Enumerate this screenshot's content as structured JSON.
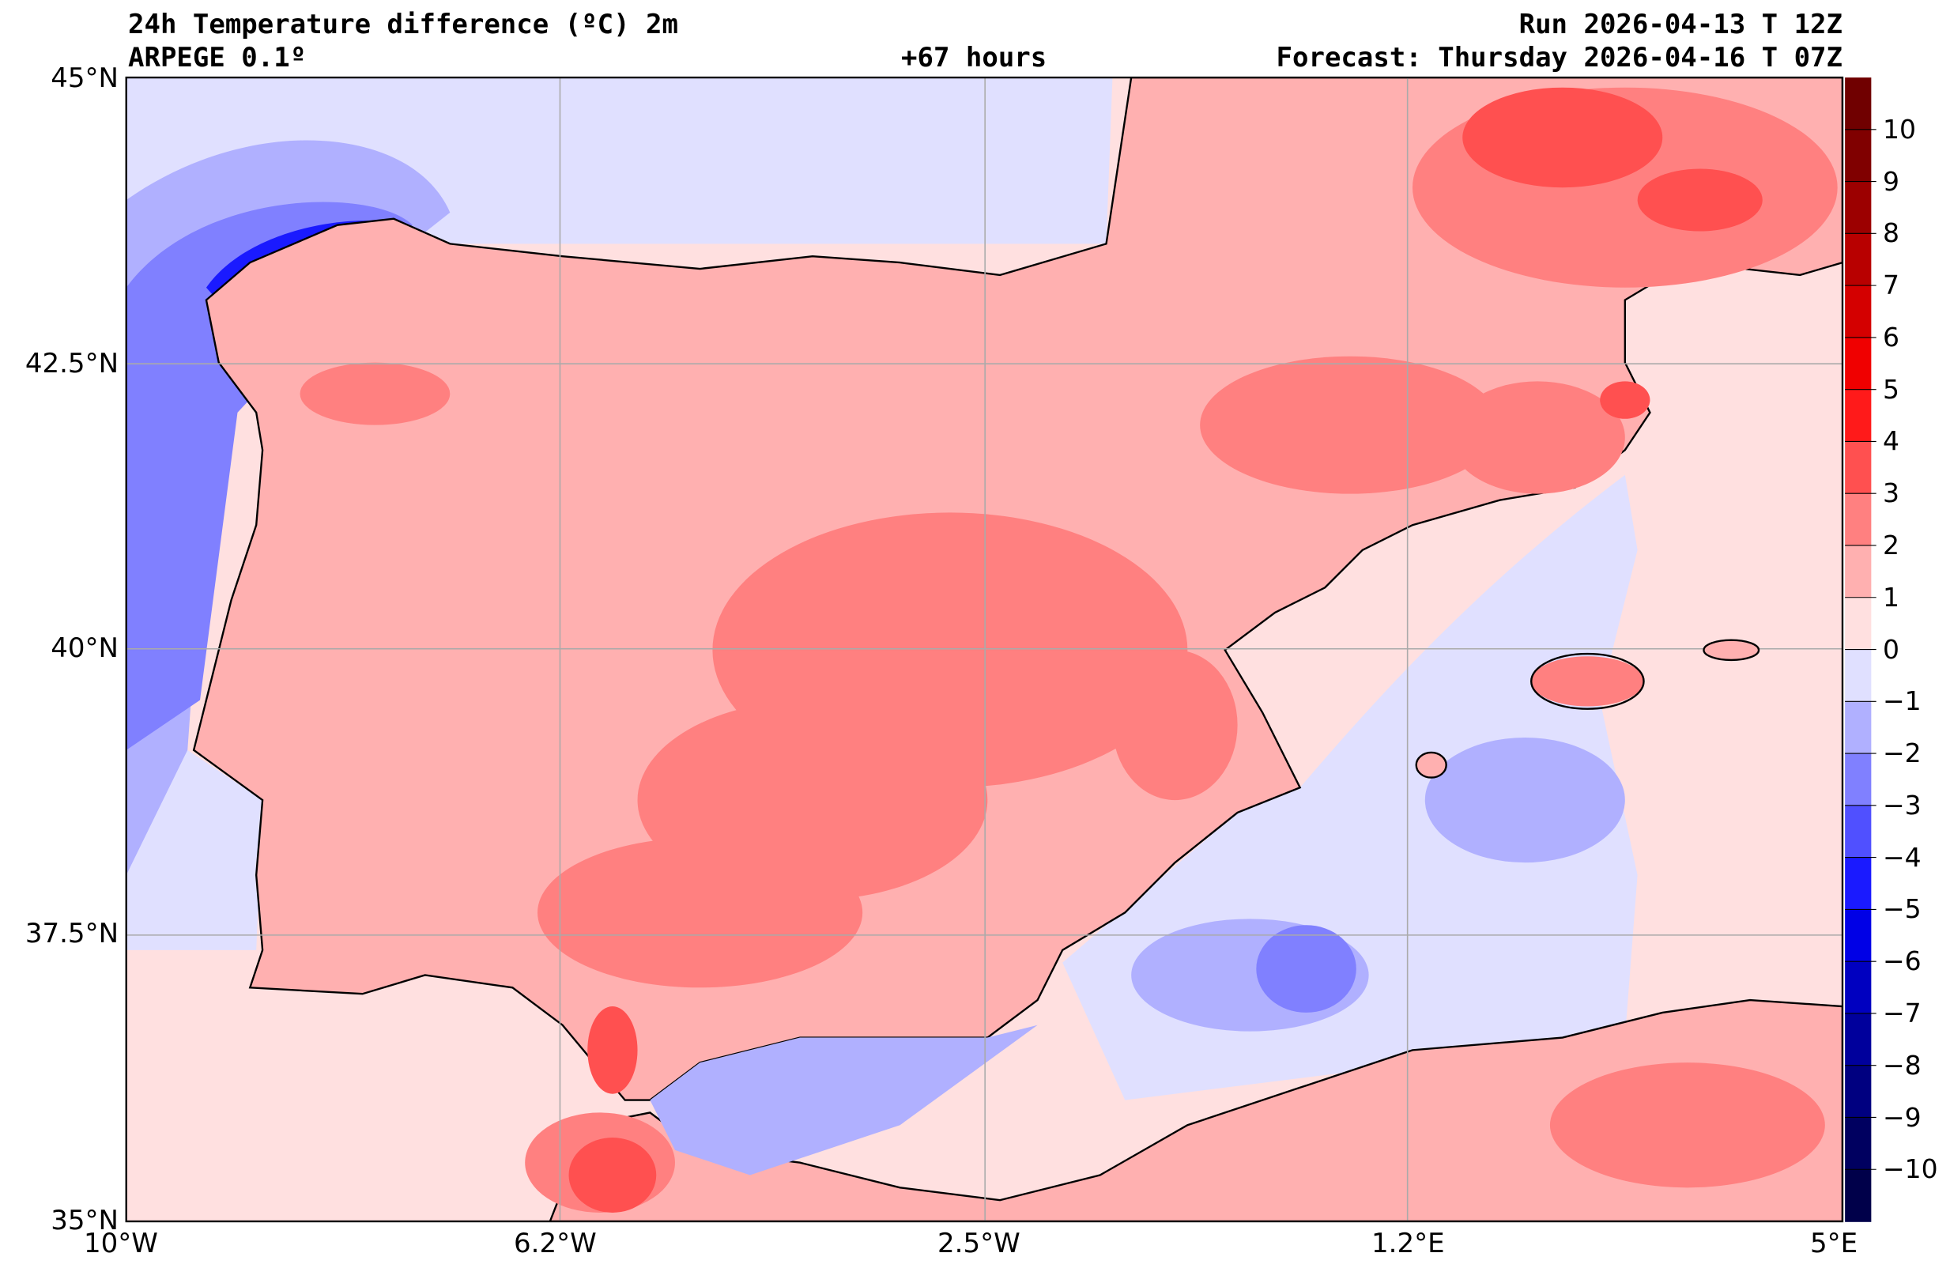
{
  "header": {
    "title": "24h Temperature difference (ºC) 2m",
    "model": "ARPEGE 0.1º",
    "lead_time": "+67 hours",
    "run": "Run 2026-04-13 T 12Z",
    "forecast": "Forecast: Thursday 2026-04-16 T 07Z"
  },
  "axes": {
    "lat_labels": [
      "45°N",
      "42.5°N",
      "40°N",
      "37.5°N",
      "35°N"
    ],
    "lon_labels": [
      "10°W",
      "6.2°W",
      "2.5°W",
      "1.2°E",
      "5°E"
    ]
  },
  "colorbar": {
    "tick_labels": [
      "10",
      "9",
      "8",
      "7",
      "6",
      "5",
      "4",
      "3",
      "2",
      "1",
      "0",
      "−1",
      "−2",
      "−3",
      "−4",
      "−5",
      "−6",
      "−7",
      "−8",
      "−9",
      "−10"
    ],
    "colors_top_to_bottom": [
      "#700000",
      "#800000",
      "#9c0000",
      "#b80000",
      "#d40000",
      "#f00000",
      "#ff1a1a",
      "#ff5050",
      "#ff8080",
      "#ffb0b0",
      "#ffe0e0",
      "#e0e0ff",
      "#b0b0ff",
      "#8080ff",
      "#5050ff",
      "#1a1aff",
      "#0000e6",
      "#0000c0",
      "#00009c",
      "#000080",
      "#000060",
      "#00004a"
    ]
  }
}
